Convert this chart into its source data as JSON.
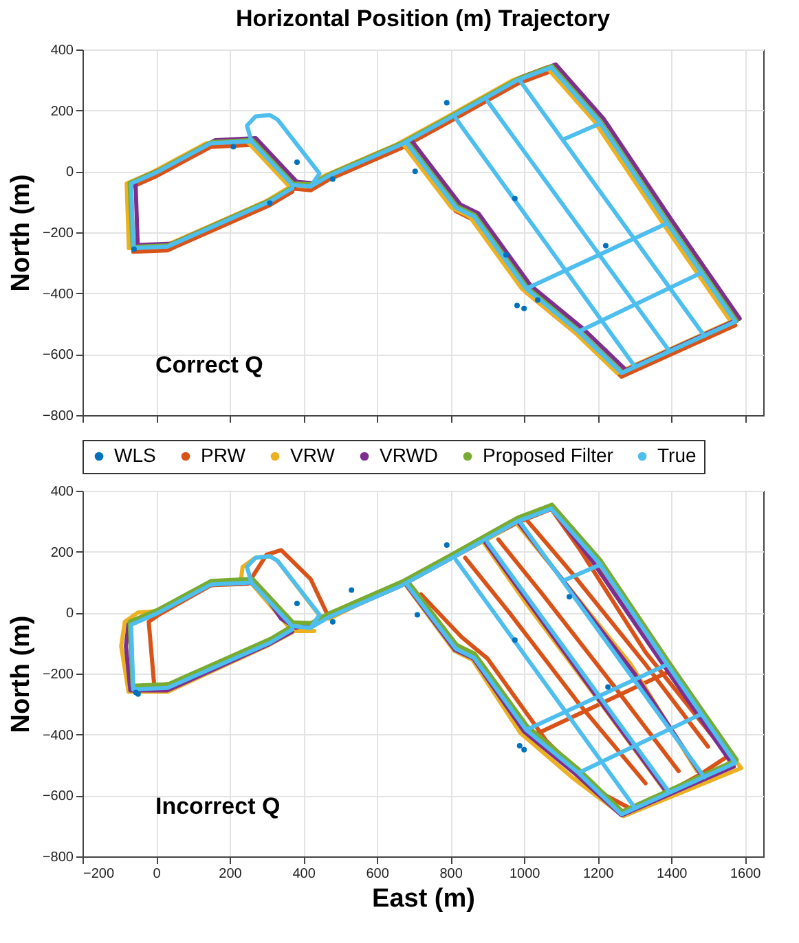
{
  "chart_data": [
    {
      "type": "line",
      "title": "Horizontal Position (m) Trajectory",
      "ylabel": "North (m)",
      "annotations": [
        "Correct Q"
      ],
      "xlim": [
        -200,
        1650
      ],
      "ylim": [
        -800,
        400
      ],
      "xticks": [
        -200,
        0,
        200,
        400,
        600,
        800,
        1000,
        1200,
        1400,
        1600
      ],
      "yticks": [
        -800,
        -600,
        -400,
        -200,
        0,
        200,
        400
      ],
      "grid": true,
      "tick_labels": "y",
      "legend": "bottom",
      "series": [
        {
          "name": "WLS",
          "type": "scatter",
          "marker": "circle",
          "color": "#0072bd",
          "x": [
            981,
            383,
            704,
            790,
            1222,
            975,
            951,
            210,
            309,
            1037,
            -60,
            480,
            1000
          ],
          "values": [
            -440,
            30,
            0,
            225,
            -244,
            -89,
            -274,
            81,
            -104,
            -422,
            -255,
            -25,
            -450
          ]
        },
        {
          "name": "PRW",
          "color": "#d95319",
          "x": [
            370,
            309,
            31,
            -62,
            -68,
            0,
            148,
            259,
            370,
            420,
            469,
            667,
            802,
            981,
            1074,
            1204,
            1389,
            1574,
            1265,
            1148,
            1006,
            864,
            815,
            679
          ],
          "values": [
            -67,
            -111,
            -259,
            -264,
            -52,
            -16,
            80,
            87,
            -56,
            -62,
            -27,
            77,
            166,
            287,
            329,
            151,
            -182,
            -505,
            -674,
            -538,
            -397,
            -160,
            -131,
            84
          ]
        },
        {
          "name": "VRW",
          "color": "#edb120",
          "x": [
            358,
            297,
            19,
            -74,
            -80,
            -12,
            136,
            247,
            358,
            408,
            457,
            655,
            790,
            969,
            1062,
            1192,
            1377,
            1562,
            1253,
            1136,
            994,
            852,
            803,
            667
          ],
          "values": [
            -55,
            -99,
            -247,
            -252,
            -40,
            -4,
            92,
            99,
            -44,
            -50,
            -15,
            89,
            178,
            299,
            341,
            163,
            -170,
            -493,
            -662,
            -526,
            -385,
            -148,
            -119,
            96
          ]
        },
        {
          "name": "VRWD",
          "color": "#7e2f8e",
          "x": [
            382,
            321,
            43,
            -50,
            -56,
            12,
            160,
            271,
            382,
            432,
            481,
            679,
            814,
            993,
            1086,
            1216,
            1401,
            1586,
            1277,
            1160,
            1018,
            876,
            827,
            691
          ],
          "values": [
            -45,
            -89,
            -237,
            -242,
            -30,
            6,
            102,
            109,
            -34,
            -40,
            -5,
            99,
            188,
            309,
            351,
            173,
            -160,
            -483,
            -652,
            -516,
            -375,
            -138,
            -109,
            106
          ]
        },
        {
          "name": "Proposed Filter",
          "color": "#77ac30",
          "x": [
            372,
            311,
            33,
            -64,
            -72,
            2,
            150,
            262,
            372,
            422,
            471,
            669,
            804,
            983,
            1076,
            1207,
            1392,
            1578,
            1267,
            1150,
            1008,
            866,
            817,
            681
          ],
          "values": [
            -50,
            -94,
            -243,
            -248,
            -38,
            0,
            96,
            103,
            -40,
            -42,
            -10,
            94,
            183,
            304,
            346,
            165,
            -168,
            -491,
            -660,
            -524,
            -380,
            -143,
            -114,
            100
          ]
        },
        {
          "name": "True",
          "color": "#4dbeee",
          "x": [
            370,
            309,
            31,
            -62,
            -68,
            0,
            148,
            259,
            370,
            420,
            469,
            667,
            802,
            981,
            1074,
            1204,
            1389,
            1574,
            1265,
            1148,
            1006,
            864,
            815,
            679,
            null,
            259,
            247,
            270,
            309,
            330,
            444,
            420,
            null,
            1006,
            1389,
            null,
            1148,
            1481,
            null,
            1105,
            1204,
            null,
            815,
            1302,
            null,
            901,
            1395,
            null,
            988,
            1490
          ],
          "values": [
            -55,
            -99,
            -247,
            -252,
            -40,
            -4,
            92,
            99,
            -44,
            -50,
            -15,
            89,
            178,
            299,
            341,
            163,
            -170,
            -493,
            -662,
            -526,
            -385,
            -148,
            -119,
            96,
            null,
            99,
            150,
            180,
            185,
            170,
            -7,
            -50,
            null,
            -385,
            -170,
            null,
            -526,
            -333,
            null,
            104,
            156,
            null,
            173,
            -642,
            null,
            230,
            -590,
            null,
            299,
            -540
          ]
        }
      ]
    },
    {
      "type": "line",
      "xlabel": "East (m)",
      "ylabel": "North (m)",
      "annotations": [
        "Incorrect Q"
      ],
      "xlim": [
        -200,
        1650
      ],
      "ylim": [
        -800,
        400
      ],
      "xticks": [
        -200,
        0,
        200,
        400,
        600,
        800,
        1000,
        1200,
        1400,
        1600
      ],
      "yticks": [
        -800,
        -600,
        -400,
        -200,
        0,
        200,
        400
      ],
      "grid": true,
      "series": [
        {
          "type": "scatter",
          "marker": "circle",
          "color": "#0072bd",
          "x": [
            710,
            988,
            1000,
            383,
            531,
            -49,
            1228,
            790,
            1123,
            975,
            480,
            -55
          ],
          "values": [
            -7,
            -437,
            -450,
            30,
            74,
            -267,
            -244,
            222,
            52,
            -90,
            -30,
            -262
          ]
        },
        {
          "color": "#d95319",
          "x": [
            370,
            300,
            60,
            -5,
            -20,
            10,
            150,
            250,
            300,
            340,
            420,
            469,
            667,
            802,
            981,
            1074,
            1150,
            1330,
            1555,
            1480,
            1300,
            1160,
            null,
            720,
            830,
            900,
            1060,
            1180,
            null,
            840,
            960,
            1150,
            1330,
            null,
            930,
            1050,
            1250,
            1420,
            null,
            1010,
            1130,
            1330,
            1500,
            null,
            1030,
            1400
          ],
          "values": [
            -60,
            -110,
            -230,
            -240,
            -30,
            -5,
            90,
            95,
            190,
            205,
            110,
            -15,
            89,
            178,
            295,
            340,
            210,
            -130,
            -470,
            -530,
            -650,
            -560,
            null,
            60,
            -80,
            -150,
            -420,
            -560,
            null,
            180,
            0,
            -300,
            -560,
            null,
            240,
            60,
            -250,
            -520,
            null,
            300,
            130,
            -170,
            -440,
            null,
            -400,
            -190
          ]
        },
        {
          "color": "#edb120",
          "x": [
            370,
            300,
            31,
            -75,
            -95,
            -85,
            -50,
            0,
            148,
            230,
            235,
            270,
            310,
            330,
            444,
            470,
            667,
            802,
            900,
            981,
            1074,
            1190,
            1380,
            1590,
            1270,
            1130,
            990,
            860,
            810,
            679,
            null,
            260,
            320,
            370,
            430,
            null,
            890,
            1000,
            1210,
            1380,
            null,
            975,
            1090,
            1290,
            1470
          ],
          "values": [
            -65,
            -110,
            -260,
            -260,
            -110,
            -30,
            0,
            5,
            95,
            100,
            150,
            180,
            185,
            170,
            -10,
            -20,
            95,
            185,
            240,
            300,
            345,
            175,
            -170,
            -510,
            -668,
            -540,
            -395,
            -155,
            -125,
            90,
            null,
            95,
            10,
            -60,
            -60,
            null,
            230,
            40,
            -300,
            -580,
            null,
            300,
            130,
            -170,
            -520
          ]
        },
        {
          "color": "#7e2f8e",
          "x": [
            370,
            305,
            31,
            -70,
            -82,
            -75,
            0,
            148,
            259,
            300,
            340,
            380,
            469,
            667,
            802,
            981,
            1074,
            1185,
            1375,
            1570,
            1265,
            1140,
            1000,
            862,
            812,
            679,
            null,
            895,
            1200,
            1385,
            null,
            982,
            1300,
            1480
          ],
          "values": [
            -62,
            -105,
            -255,
            -255,
            -110,
            -38,
            0,
            93,
            98,
            50,
            -20,
            -50,
            -15,
            90,
            180,
            300,
            343,
            170,
            -165,
            -505,
            -665,
            -530,
            -390,
            -150,
            -122,
            93,
            null,
            230,
            -280,
            -585,
            null,
            300,
            -200,
            -530
          ]
        },
        {
          "color": "#77ac30",
          "x": [
            372,
            311,
            33,
            -64,
            -72,
            2,
            150,
            262,
            372,
            422,
            471,
            669,
            804,
            983,
            1076,
            1207,
            1392,
            1578,
            1267,
            1150,
            1008,
            866,
            817,
            681
          ],
          "values": [
            -42,
            -86,
            -235,
            -240,
            -30,
            8,
            104,
            111,
            -32,
            -34,
            -2,
            102,
            191,
            312,
            354,
            173,
            -160,
            -483,
            -652,
            -516,
            -372,
            -135,
            -106,
            108
          ]
        },
        {
          "color": "#4dbeee",
          "x": [
            370,
            309,
            31,
            -62,
            -68,
            0,
            148,
            259,
            370,
            420,
            469,
            667,
            802,
            981,
            1074,
            1204,
            1389,
            1574,
            1265,
            1148,
            1006,
            864,
            815,
            679,
            null,
            259,
            247,
            270,
            309,
            330,
            444,
            420,
            null,
            1006,
            1389,
            null,
            1148,
            1481,
            null,
            1105,
            1204,
            null,
            815,
            1302,
            null,
            901,
            1395,
            null,
            988,
            1490
          ],
          "values": [
            -55,
            -99,
            -247,
            -252,
            -40,
            -4,
            92,
            99,
            -44,
            -50,
            -15,
            89,
            178,
            299,
            341,
            163,
            -170,
            -493,
            -662,
            -526,
            -385,
            -148,
            -119,
            96,
            null,
            99,
            150,
            180,
            185,
            170,
            -7,
            -50,
            null,
            -385,
            -170,
            null,
            -526,
            -333,
            null,
            104,
            156,
            null,
            173,
            -642,
            null,
            230,
            -590,
            null,
            299,
            -540
          ]
        }
      ]
    }
  ]
}
